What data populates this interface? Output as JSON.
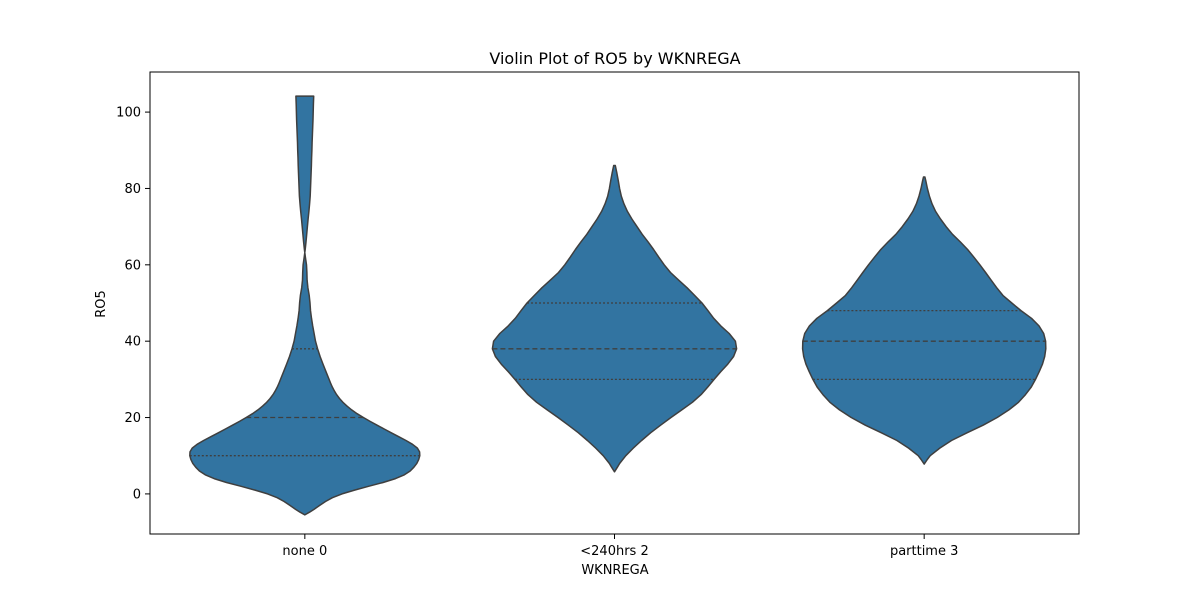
{
  "chart_data": {
    "type": "violin",
    "title": "Violin Plot of RO5 by WKNREGA",
    "xlabel": "WKNREGA",
    "ylabel": "RO5",
    "categories": [
      "none 0",
      "<240hrs 2",
      "parttime 3"
    ],
    "ylim": [
      -10.5,
      110.5
    ],
    "yticks": [
      0,
      20,
      40,
      60,
      80,
      100
    ],
    "fill_color": "#3274a1",
    "edge_color": "#3f3f3f",
    "grid": false,
    "legend": "none",
    "violins": [
      {
        "category": "none 0",
        "quartiles": {
          "q1": 10,
          "median": 20,
          "q3": 38
        },
        "profile": [
          [
            -5.5,
            0
          ],
          [
            -4.8,
            4.7
          ],
          [
            -4,
            9.4
          ],
          [
            -3,
            14.9
          ],
          [
            -2,
            20.7
          ],
          [
            -1,
            27.6
          ],
          [
            0,
            37.2
          ],
          [
            1,
            49.8
          ],
          [
            2,
            63.7
          ],
          [
            3,
            78.3
          ],
          [
            4,
            90.7
          ],
          [
            5,
            99.6
          ],
          [
            6,
            105.4
          ],
          [
            7,
            109.1
          ],
          [
            8,
            112
          ],
          [
            9,
            113.9
          ],
          [
            10,
            115
          ],
          [
            11,
            114.8
          ],
          [
            12,
            112.6
          ],
          [
            13,
            107.7
          ],
          [
            14,
            101.2
          ],
          [
            15,
            93.7
          ],
          [
            16,
            86.5
          ],
          [
            17,
            79.4
          ],
          [
            18,
            72.3
          ],
          [
            19,
            65.3
          ],
          [
            20,
            58.6
          ],
          [
            21,
            52.3
          ],
          [
            22,
            46.9
          ],
          [
            23,
            42.2
          ],
          [
            24,
            38.1
          ],
          [
            25,
            34.7
          ],
          [
            26,
            31.8
          ],
          [
            27,
            29.5
          ],
          [
            28,
            27.5
          ],
          [
            29,
            25.8
          ],
          [
            30,
            24.3
          ],
          [
            32,
            21.2
          ],
          [
            34,
            18.2
          ],
          [
            36,
            15.3
          ],
          [
            38,
            12.8
          ],
          [
            40,
            10.7
          ],
          [
            42,
            9.3
          ],
          [
            44,
            7.9
          ],
          [
            46,
            6.7
          ],
          [
            48,
            5.7
          ],
          [
            50,
            5.2
          ],
          [
            52,
            4.4
          ],
          [
            54,
            3.1
          ],
          [
            56,
            2.3
          ],
          [
            58,
            2.1
          ],
          [
            60,
            1.7
          ],
          [
            62,
            0.6
          ],
          [
            64,
            -0.4
          ],
          [
            66,
            -1.2
          ],
          [
            68,
            -1.9
          ],
          [
            70,
            -2.6
          ],
          [
            72,
            -3.3
          ],
          [
            74,
            -4.1
          ],
          [
            76,
            -4.8
          ],
          [
            78,
            -5.4
          ],
          [
            80,
            -5.7
          ],
          [
            82,
            -6
          ],
          [
            84,
            -6.3
          ],
          [
            86,
            -6.6
          ],
          [
            88,
            -6.8
          ],
          [
            90,
            -7.1
          ],
          [
            92,
            -7.3
          ],
          [
            94,
            -7.6
          ],
          [
            96,
            -7.9
          ],
          [
            98,
            -8.2
          ],
          [
            100,
            -8.4
          ],
          [
            102,
            -8.6
          ],
          [
            104.2,
            -8.9
          ]
        ]
      },
      {
        "category": "<240hrs 2",
        "quartiles": {
          "q1": 30,
          "median": 38,
          "q3": 50
        },
        "profile": [
          [
            5.8,
            0
          ],
          [
            7,
            2.9
          ],
          [
            8,
            5.2
          ],
          [
            10,
            11.3
          ],
          [
            12,
            18.8
          ],
          [
            14,
            27.1
          ],
          [
            16,
            36.1
          ],
          [
            18,
            46.1
          ],
          [
            20,
            56.5
          ],
          [
            22,
            67.3
          ],
          [
            24,
            77.9
          ],
          [
            26,
            86.6
          ],
          [
            28,
            93.3
          ],
          [
            30,
            99.6
          ],
          [
            32,
            106.2
          ],
          [
            34,
            113.3
          ],
          [
            36,
            119.1
          ],
          [
            38,
            122.1
          ],
          [
            40,
            120.9
          ],
          [
            42,
            114.7
          ],
          [
            44,
            106.3
          ],
          [
            46,
            99.2
          ],
          [
            48,
            93.4
          ],
          [
            50,
            87.5
          ],
          [
            52,
            80.1
          ],
          [
            54,
            72.5
          ],
          [
            56,
            64.1
          ],
          [
            58,
            56
          ],
          [
            60,
            49.7
          ],
          [
            62,
            44.3
          ],
          [
            64,
            39.1
          ],
          [
            66,
            33.6
          ],
          [
            68,
            27.7
          ],
          [
            70,
            22.5
          ],
          [
            72,
            17.4
          ],
          [
            74,
            12.9
          ],
          [
            76,
            9.4
          ],
          [
            78,
            6.8
          ],
          [
            80,
            5.1
          ],
          [
            82,
            3.8
          ],
          [
            84,
            2.4
          ],
          [
            86,
            0.8
          ]
        ]
      },
      {
        "category": "parttime 3",
        "quartiles": {
          "q1": 30,
          "median": 40,
          "q3": 48
        },
        "profile": [
          [
            7.8,
            0
          ],
          [
            9,
            3.1
          ],
          [
            10,
            6
          ],
          [
            12,
            15.6
          ],
          [
            14,
            27.3
          ],
          [
            16,
            42.8
          ],
          [
            18,
            58.9
          ],
          [
            20,
            73
          ],
          [
            22,
            84.7
          ],
          [
            24,
            94.3
          ],
          [
            26,
            101.3
          ],
          [
            28,
            107.1
          ],
          [
            30,
            111.3
          ],
          [
            32,
            115
          ],
          [
            34,
            118.3
          ],
          [
            36,
            120.5
          ],
          [
            38,
            121.6
          ],
          [
            40,
            121.4
          ],
          [
            42,
            119.5
          ],
          [
            44,
            114.8
          ],
          [
            46,
            107.3
          ],
          [
            48,
            96.8
          ],
          [
            50,
            87.6
          ],
          [
            52,
            78.7
          ],
          [
            54,
            72.5
          ],
          [
            56,
            66.9
          ],
          [
            58,
            61.4
          ],
          [
            60,
            55.7
          ],
          [
            62,
            49.7
          ],
          [
            64,
            43.4
          ],
          [
            66,
            36.1
          ],
          [
            68,
            28.3
          ],
          [
            70,
            21.9
          ],
          [
            72,
            16.3
          ],
          [
            74,
            11.4
          ],
          [
            76,
            7.8
          ],
          [
            78,
            5.2
          ],
          [
            80,
            3.2
          ],
          [
            82,
            1.6
          ],
          [
            83,
            0.7
          ]
        ]
      }
    ]
  }
}
